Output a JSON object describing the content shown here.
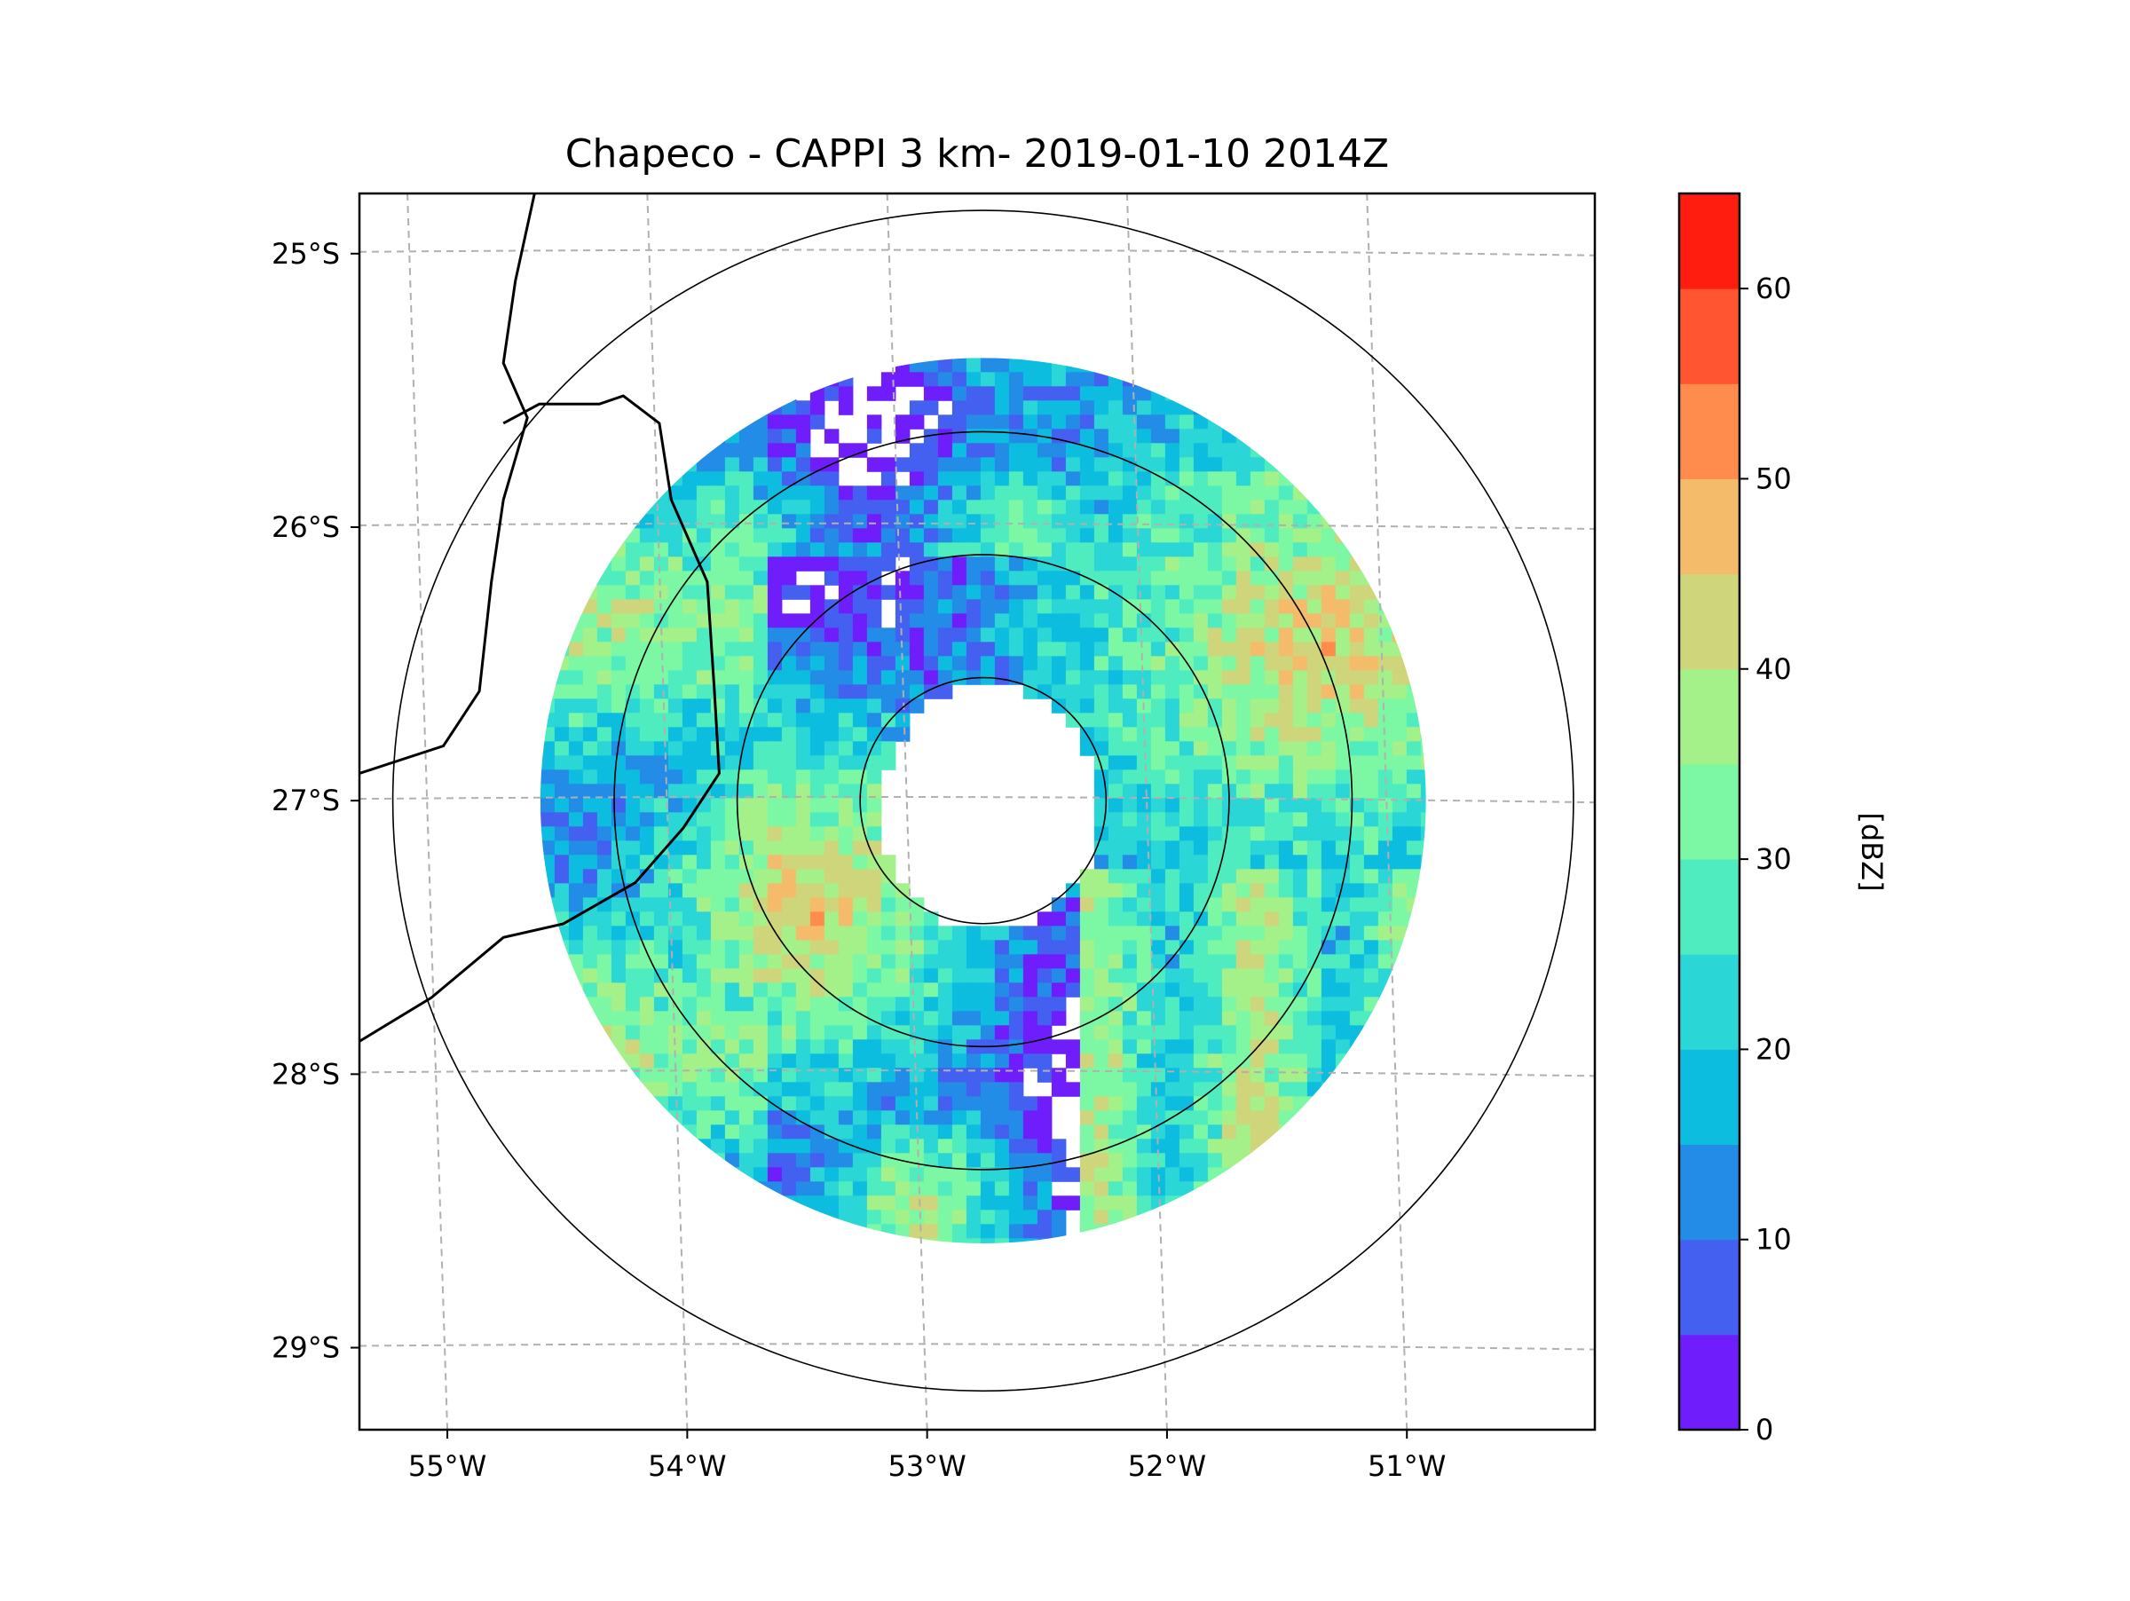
{
  "chart_data": {
    "type": "heatmap",
    "title": "Chapeco - CAPPI 3 km- 2019-01-10 2014Z",
    "xaxis": {
      "ticks": [
        {
          "value": -55,
          "label": "55°W"
        },
        {
          "value": -54,
          "label": "54°W"
        },
        {
          "value": -53,
          "label": "53°W"
        },
        {
          "value": -52,
          "label": "52°W"
        },
        {
          "value": -51,
          "label": "51°W"
        }
      ],
      "range": [
        -55.2,
        -50.05
      ]
    },
    "yaxis": {
      "ticks": [
        {
          "value": -25,
          "label": "25°S"
        },
        {
          "value": -26,
          "label": "26°S"
        },
        {
          "value": -27,
          "label": "27°S"
        },
        {
          "value": -28,
          "label": "28°S"
        },
        {
          "value": -29,
          "label": "29°S"
        }
      ],
      "range": [
        -29.3,
        -24.78
      ]
    },
    "grid": true,
    "radar_center": {
      "lon": -52.6,
      "lat": -27.0
    },
    "range_rings_km": [
      50,
      100,
      150,
      240
    ],
    "data_extent_km": 180,
    "colorbar": {
      "label": "[dBZ]",
      "min": 0,
      "max": 65,
      "step": 5,
      "tick_labels": [
        "0",
        "10",
        "20",
        "30",
        "40",
        "50",
        "60"
      ],
      "colors": [
        "#6f1efb",
        "#4460f0",
        "#238ce6",
        "#0dbde0",
        "#2bd6d6",
        "#4fecc0",
        "#7cf7a4",
        "#a4f089",
        "#cfd57a",
        "#f4bc6a",
        "#ff8c4c",
        "#ff5530",
        "#ff1d10"
      ]
    },
    "echo_features": [
      {
        "region": "north-arc",
        "dbz_range": [
          5,
          35
        ]
      },
      {
        "region": "west-band",
        "dbz_range": [
          10,
          40
        ]
      },
      {
        "region": "southwest-cell",
        "lon": -53.4,
        "lat": -27.3,
        "peak_dbz": 50
      },
      {
        "region": "northeast-band",
        "lon": -51.2,
        "lat": -26.4,
        "peak_dbz": 50
      },
      {
        "region": "southeast-field",
        "dbz_range": [
          15,
          40
        ]
      },
      {
        "region": "south-cell",
        "lon": -52.9,
        "lat": -28.5,
        "peak_dbz": 45
      }
    ],
    "map_features": [
      "country-border",
      "state-border"
    ]
  }
}
